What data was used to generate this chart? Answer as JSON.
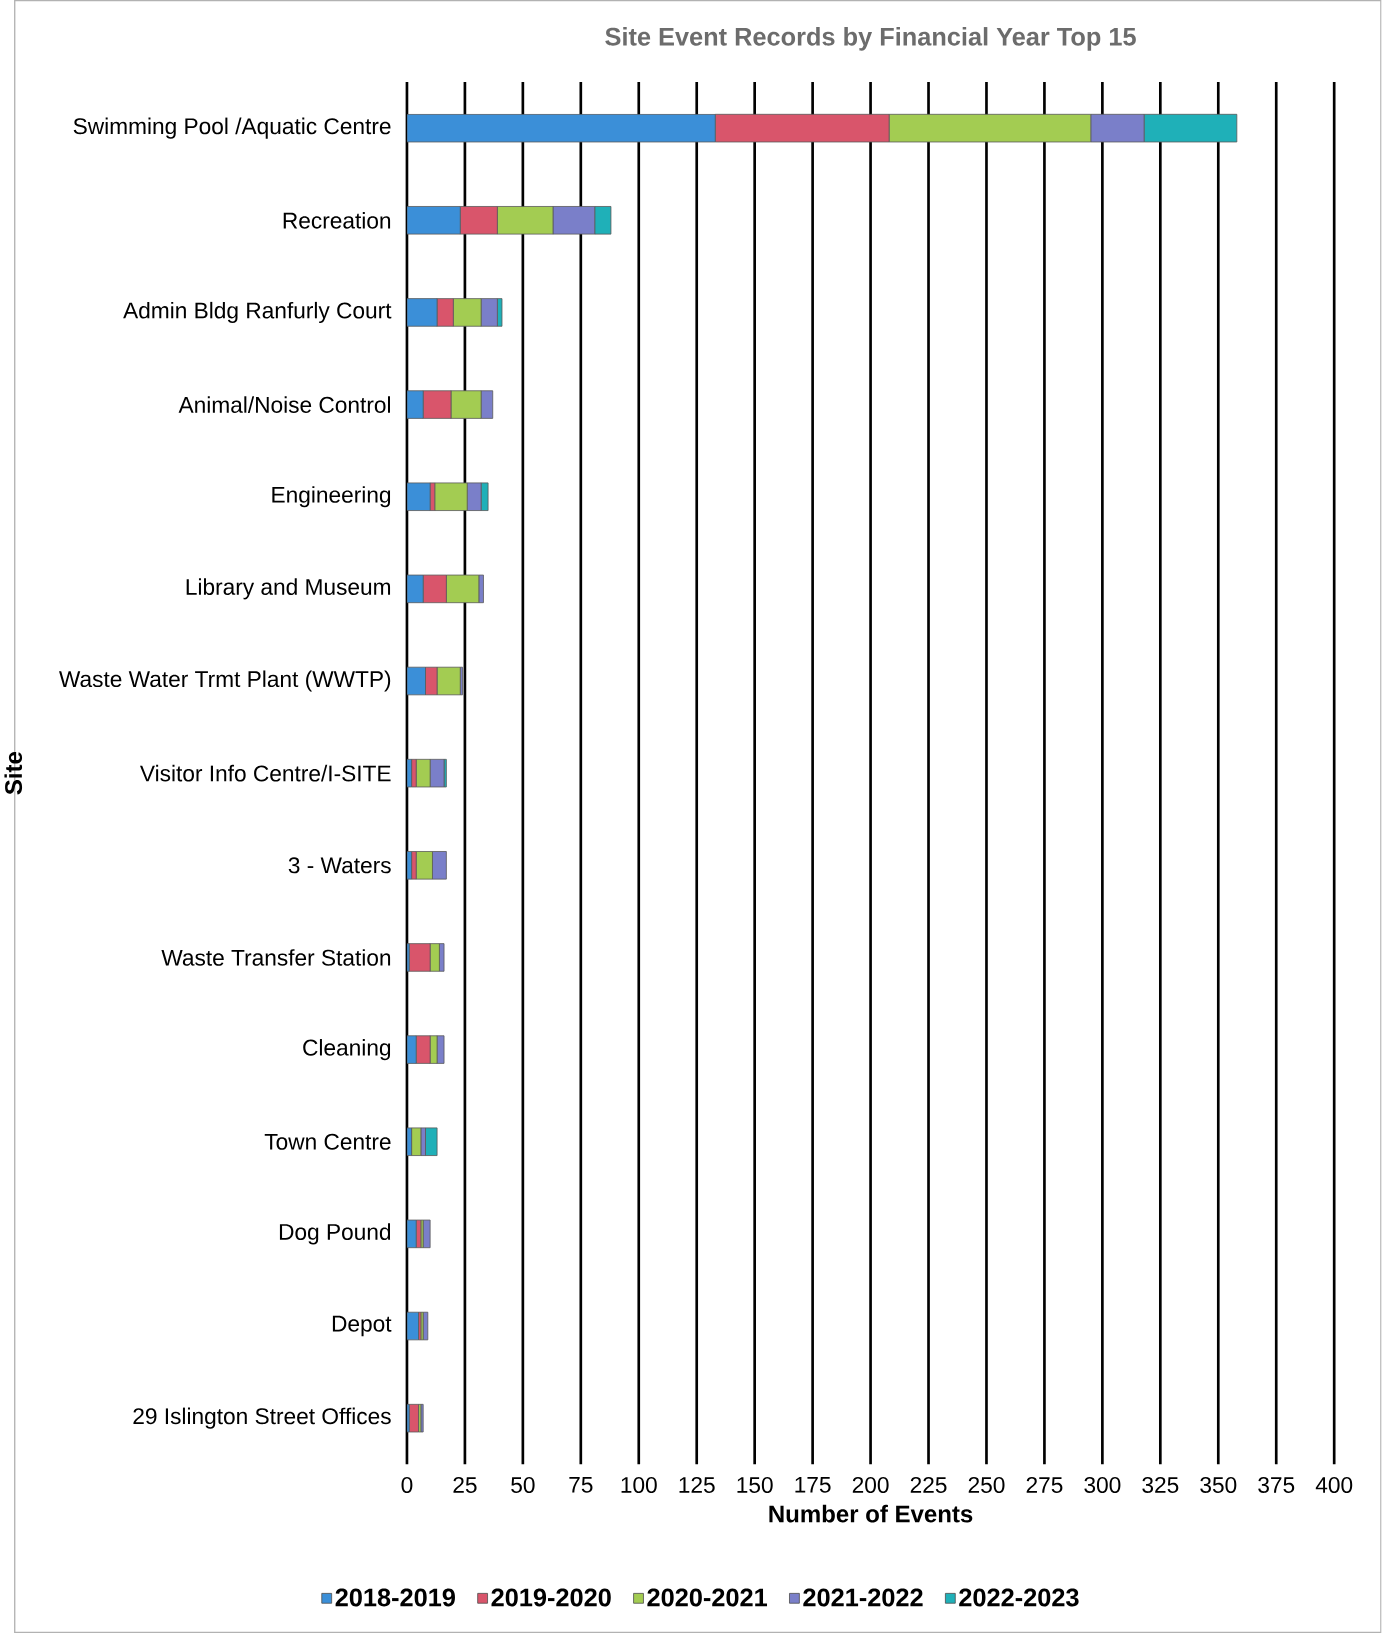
{
  "chart_data": {
    "type": "bar",
    "orientation": "horizontal",
    "stacked": true,
    "title": "Site Event Records by Financial Year Top 15",
    "xlabel": "Number of Events",
    "ylabel": "Site",
    "categories": [
      "Swimming Pool /Aquatic Centre",
      "Recreation",
      "Admin Bldg Ranfurly Court",
      "Animal/Noise Control",
      "Engineering",
      "Library and Museum",
      "Waste Water Trmt Plant (WWTP)",
      "Visitor Info Centre/I-SITE",
      "3 - Waters",
      "Waste Transfer Station",
      "Cleaning",
      "Town Centre",
      "Dog Pound",
      "Depot",
      "29 Islington Street Offices"
    ],
    "series": [
      {
        "name": "2018-2019",
        "color": "#3b8fd8",
        "values": [
          133,
          23,
          13,
          7,
          10,
          7,
          8,
          2,
          2,
          1,
          4,
          2,
          4,
          5,
          1
        ]
      },
      {
        "name": "2019-2020",
        "color": "#d9556b",
        "values": [
          75,
          16,
          7,
          12,
          2,
          10,
          5,
          2,
          2,
          9,
          6,
          null,
          2,
          1,
          4
        ]
      },
      {
        "name": "2020-2021",
        "color": "#a3cc52",
        "values": [
          87,
          24,
          12,
          13,
          14,
          14,
          10,
          6,
          7,
          4,
          3,
          4,
          1,
          1,
          1
        ]
      },
      {
        "name": "2021-2022",
        "color": "#7a7fc9",
        "values": [
          23,
          18,
          7,
          5,
          6,
          2,
          1,
          6,
          6,
          2,
          3,
          2,
          3,
          2,
          1
        ]
      },
      {
        "name": "2022-2023",
        "color": "#1fb0b8",
        "values": [
          40,
          7,
          2,
          null,
          3,
          null,
          null,
          1,
          null,
          null,
          null,
          5,
          null,
          null,
          null
        ]
      }
    ],
    "xlim": [
      0,
      400
    ],
    "xticks": [
      0,
      25,
      50,
      75,
      100,
      125,
      150,
      175,
      200,
      225,
      250,
      275,
      300,
      325,
      350,
      375,
      400
    ],
    "grid": "x",
    "legend": "bottom"
  }
}
